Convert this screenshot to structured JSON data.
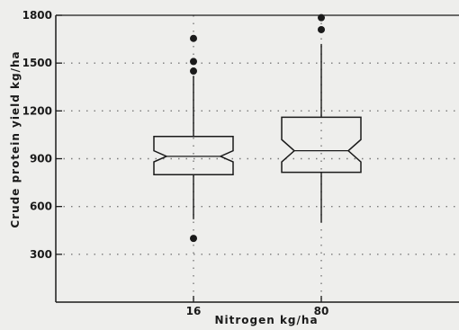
{
  "chart_data": {
    "type": "box",
    "title": "",
    "xlabel": "Nitrogen kg/ha",
    "ylabel": "Crude protein yield kg/ha",
    "categories": [
      "16",
      "80"
    ],
    "ylim": [
      0,
      1800
    ],
    "yticks": [
      300,
      600,
      900,
      1200,
      1500,
      1800
    ],
    "grid": "dotted",
    "boxes": [
      {
        "category": "16",
        "whisker_low": 520,
        "q1": 800,
        "median": 915,
        "q3": 1040,
        "whisker_high": 1420,
        "notch_low": 880,
        "notch_high": 950,
        "outliers": [
          400,
          1450,
          1510,
          1655
        ]
      },
      {
        "category": "80",
        "whisker_low": 500,
        "q1": 815,
        "median": 950,
        "q3": 1160,
        "whisker_high": 1620,
        "notch_low": 880,
        "notch_high": 1020,
        "outliers": [
          1710,
          1785
        ]
      }
    ],
    "colors": {
      "ink": "#1a1a1a",
      "background": "#eeeeec",
      "grid": "#7a7a7a"
    }
  }
}
